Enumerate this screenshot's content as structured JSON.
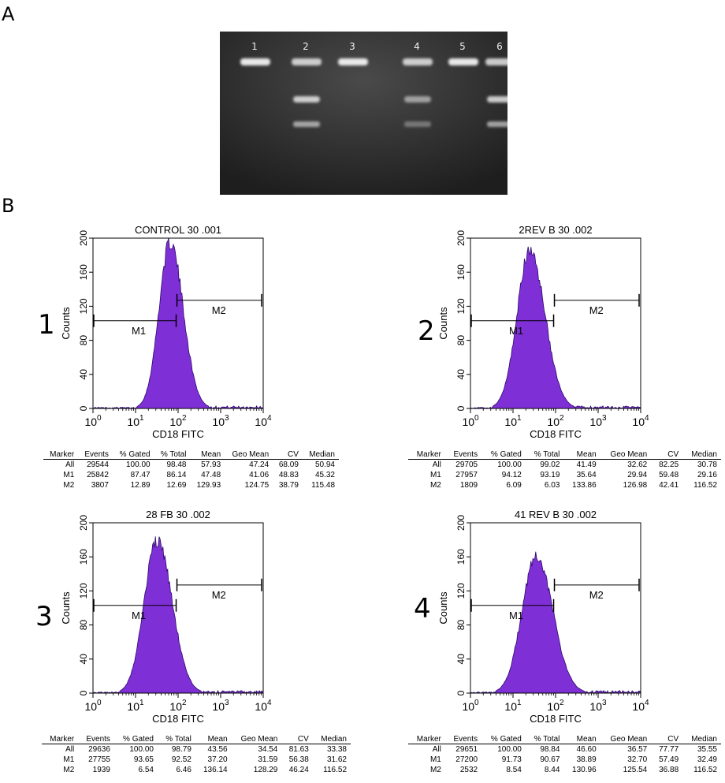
{
  "figure": {
    "panel_a": "A",
    "panel_b": "B"
  },
  "gel": {
    "lanes": [
      "1",
      "2",
      "3",
      "4",
      "5",
      "6"
    ],
    "colors": {
      "background": "#2c2c2c",
      "band": "#f2f2f2"
    }
  },
  "colors": {
    "histogram_fill": "#7f2fd6",
    "histogram_edge": "#2a0a6a"
  },
  "chart_data": [
    {
      "type": "area",
      "number": "1",
      "title": "CONTROL 30 .001",
      "xlabel": "CD18 FITC",
      "ylabel": "Counts",
      "xscale": "log",
      "xlim": [
        1,
        10000
      ],
      "ylim": [
        0,
        200
      ],
      "xticks": [
        "0",
        "1",
        "2",
        "3",
        "4"
      ],
      "yticks": [
        0,
        40,
        80,
        120,
        160,
        200
      ],
      "peak": {
        "x": 65,
        "y": 200,
        "sigma": 0.26
      },
      "markers": [
        {
          "name": "M1",
          "x_start": 1,
          "x_end": 90,
          "y": 103
        },
        {
          "name": "M2",
          "x_start": 90,
          "x_end": 10000,
          "y": 127
        }
      ],
      "stats": {
        "headers": [
          "Marker",
          "Events",
          "% Gated",
          "% Total",
          "Mean",
          "Geo Mean",
          "CV",
          "Median"
        ],
        "rows": [
          [
            "All",
            "29544",
            "100.00",
            "98.48",
            "57.93",
            "47.24",
            "68.09",
            "50.94"
          ],
          [
            "M1",
            "25842",
            "87.47",
            "86.14",
            "47.48",
            "41.06",
            "48.83",
            "45.32"
          ],
          [
            "M2",
            "3807",
            "12.89",
            "12.69",
            "129.93",
            "124.75",
            "38.79",
            "115.48"
          ]
        ]
      }
    },
    {
      "type": "area",
      "number": "2",
      "title": "2REV B 30 .002",
      "xlabel": "CD18 FITC",
      "ylabel": "Counts",
      "xscale": "log",
      "xlim": [
        1,
        10000
      ],
      "ylim": [
        0,
        200
      ],
      "xticks": [
        "0",
        "1",
        "2",
        "3",
        "4"
      ],
      "yticks": [
        0,
        40,
        80,
        120,
        160,
        200
      ],
      "peak": {
        "x": 25,
        "y": 190,
        "sigma": 0.3
      },
      "markers": [
        {
          "name": "M1",
          "x_start": 1,
          "x_end": 90,
          "y": 103
        },
        {
          "name": "M2",
          "x_start": 90,
          "x_end": 10000,
          "y": 127
        }
      ],
      "stats": {
        "headers": [
          "Marker",
          "Events",
          "% Gated",
          "% Total",
          "Mean",
          "Geo Mean",
          "CV",
          "Median"
        ],
        "rows": [
          [
            "All",
            "29705",
            "100.00",
            "99.02",
            "41.49",
            "32.62",
            "82.25",
            "30.78"
          ],
          [
            "M1",
            "27957",
            "94.12",
            "93.19",
            "35.64",
            "29.94",
            "59.48",
            "29.16"
          ],
          [
            "M2",
            "1809",
            "6.09",
            "6.03",
            "133.86",
            "126.98",
            "42.41",
            "116.52"
          ]
        ]
      }
    },
    {
      "type": "area",
      "number": "3",
      "title": "28 FB  30 .002",
      "xlabel": "CD18 FITC",
      "ylabel": "Counts",
      "xscale": "log",
      "xlim": [
        1,
        10000
      ],
      "ylim": [
        0,
        200
      ],
      "xticks": [
        "0",
        "1",
        "2",
        "3",
        "4"
      ],
      "yticks": [
        0,
        40,
        80,
        120,
        160,
        200
      ],
      "peak": {
        "x": 32,
        "y": 184,
        "sigma": 0.3
      },
      "markers": [
        {
          "name": "M1",
          "x_start": 1,
          "x_end": 90,
          "y": 103
        },
        {
          "name": "M2",
          "x_start": 90,
          "x_end": 10000,
          "y": 127
        }
      ],
      "stats": {
        "headers": [
          "Marker",
          "Events",
          "% Gated",
          "% Total",
          "Mean",
          "Geo Mean",
          "CV",
          "Median"
        ],
        "rows": [
          [
            "All",
            "29636",
            "100.00",
            "98.79",
            "43.56",
            "34.54",
            "81.63",
            "33.38"
          ],
          [
            "M1",
            "27755",
            "93.65",
            "92.52",
            "37.20",
            "31.59",
            "56.38",
            "31.62"
          ],
          [
            "M2",
            "1939",
            "6.54",
            "6.46",
            "136.14",
            "128.29",
            "46.24",
            "116.52"
          ]
        ]
      }
    },
    {
      "type": "area",
      "number": "4",
      "title": "41 REV B  30 .002",
      "xlabel": "CD18 FITC",
      "ylabel": "Counts",
      "xscale": "log",
      "xlim": [
        1,
        10000
      ],
      "ylim": [
        0,
        200
      ],
      "xticks": [
        "0",
        "1",
        "2",
        "3",
        "4"
      ],
      "yticks": [
        0,
        40,
        80,
        120,
        160,
        200
      ],
      "peak": {
        "x": 35,
        "y": 166,
        "sigma": 0.33
      },
      "markers": [
        {
          "name": "M1",
          "x_start": 1,
          "x_end": 90,
          "y": 103
        },
        {
          "name": "M2",
          "x_start": 90,
          "x_end": 10000,
          "y": 127
        }
      ],
      "stats": {
        "headers": [
          "Marker",
          "Events",
          "% Gated",
          "% Total",
          "Mean",
          "Geo Mean",
          "CV",
          "Median"
        ],
        "rows": [
          [
            "All",
            "29651",
            "100.00",
            "98.84",
            "46.60",
            "36.57",
            "77.77",
            "35.55"
          ],
          [
            "M1",
            "27200",
            "91.73",
            "90.67",
            "38.89",
            "32.70",
            "57.49",
            "32.49"
          ],
          [
            "M2",
            "2532",
            "8.54",
            "8.44",
            "130.96",
            "125.54",
            "36.88",
            "116.52"
          ]
        ]
      }
    }
  ]
}
